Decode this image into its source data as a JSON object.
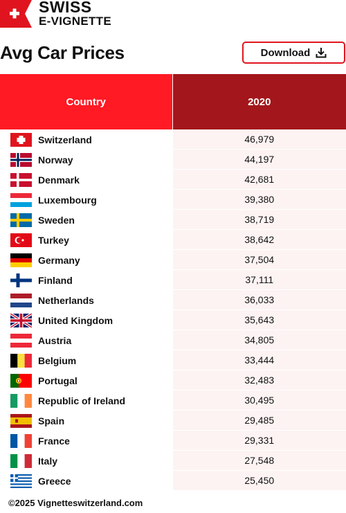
{
  "brand": {
    "line1": "SWISS",
    "line2": "E-VIGNETTE",
    "flag_color": "#e0141e"
  },
  "title": "Avg Car Prices",
  "download": {
    "label": "Download",
    "icon": "download-icon"
  },
  "table": {
    "headers": {
      "country": "Country",
      "year": "2020"
    },
    "header_colors": {
      "country": "#ff1a24",
      "year": "#a3161b"
    },
    "rows": [
      {
        "country": "Switzerland",
        "value": "46,979",
        "flag": "ch"
      },
      {
        "country": "Norway",
        "value": "44,197",
        "flag": "no"
      },
      {
        "country": "Denmark",
        "value": "42,681",
        "flag": "dk"
      },
      {
        "country": "Luxembourg",
        "value": "39,380",
        "flag": "lu"
      },
      {
        "country": "Sweden",
        "value": "38,719",
        "flag": "se"
      },
      {
        "country": "Turkey",
        "value": "38,642",
        "flag": "tr"
      },
      {
        "country": "Germany",
        "value": "37,504",
        "flag": "de"
      },
      {
        "country": "Finland",
        "value": "37,111",
        "flag": "fi"
      },
      {
        "country": "Netherlands",
        "value": "36,033",
        "flag": "nl"
      },
      {
        "country": "United Kingdom",
        "value": "35,643",
        "flag": "gb"
      },
      {
        "country": "Austria",
        "value": "34,805",
        "flag": "at"
      },
      {
        "country": "Belgium",
        "value": "33,444",
        "flag": "be"
      },
      {
        "country": "Portugal",
        "value": "32,483",
        "flag": "pt"
      },
      {
        "country": "Republic of Ireland",
        "value": "30,495",
        "flag": "ie"
      },
      {
        "country": "Spain",
        "value": "29,485",
        "flag": "es"
      },
      {
        "country": "France",
        "value": "29,331",
        "flag": "fr"
      },
      {
        "country": "Italy",
        "value": "27,548",
        "flag": "it"
      },
      {
        "country": "Greece",
        "value": "25,450",
        "flag": "gr"
      }
    ]
  },
  "footer": "©2025 Vignetteswitzerland.com"
}
